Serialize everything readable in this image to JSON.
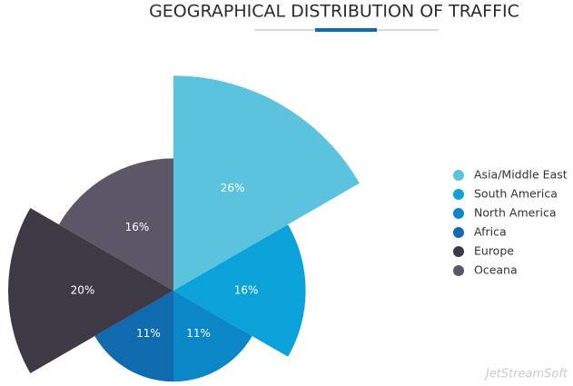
{
  "chart_data": {
    "type": "rose",
    "title": "GEOGRAPHICAL DISTRIBUTION OF TRAFFIC",
    "categories": [
      "Asia/Middle East",
      "South America",
      "North America",
      "Africa",
      "Europe",
      "Oceana"
    ],
    "values": [
      26,
      16,
      11,
      11,
      20,
      16
    ],
    "value_labels": [
      "26%",
      "16%",
      "11%",
      "11%",
      "20%",
      "16%"
    ],
    "colors": [
      "#5bc3de",
      "#0aa2d8",
      "#0b86c6",
      "#0f6aae",
      "#3d3a46",
      "#5b5767"
    ],
    "legend": "right",
    "watermark": "JetStreamSoft"
  }
}
